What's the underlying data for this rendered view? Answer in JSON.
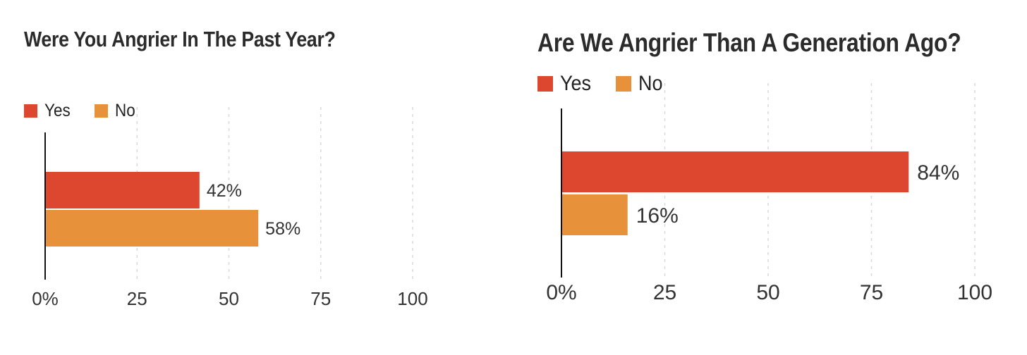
{
  "colors": {
    "yes": "#de472f",
    "no": "#e8913b",
    "grid": "#d9d9d9",
    "axis": "#111111"
  },
  "legend": {
    "yes_label": "Yes",
    "no_label": "No"
  },
  "chart_data": [
    {
      "type": "bar",
      "orientation": "horizontal",
      "title": "Were You Angrier In The Past Year?",
      "categories": [
        "Yes",
        "No"
      ],
      "values": [
        42,
        58
      ],
      "value_labels": [
        "42%",
        "58%"
      ],
      "xlim": [
        0,
        100
      ],
      "x_ticks": [
        "0%",
        "25",
        "50",
        "75",
        "100"
      ],
      "grid": "vertical dotted",
      "legend_position": "top-left"
    },
    {
      "type": "bar",
      "orientation": "horizontal",
      "title": "Are We Angrier Than A Generation Ago?",
      "categories": [
        "Yes",
        "No"
      ],
      "values": [
        84,
        16
      ],
      "value_labels": [
        "84%",
        "16%"
      ],
      "xlim": [
        0,
        100
      ],
      "x_ticks": [
        "0%",
        "25",
        "50",
        "75",
        "100"
      ],
      "grid": "vertical dotted",
      "legend_position": "top-left"
    }
  ]
}
